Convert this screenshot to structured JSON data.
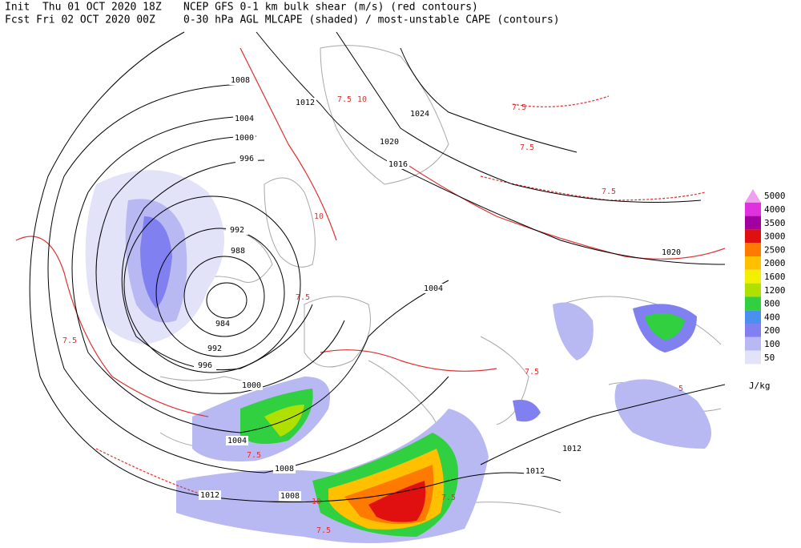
{
  "header": {
    "init": "Init  Thu 01 OCT 2020 18Z",
    "fcst": "Fcst Fri 02 OCT 2020 00Z",
    "title1": "NCEP GFS 0-1 km bulk shear (m/s) (red contours)",
    "title2": "0-30 hPa AGL MLCAPE (shaded) / most-unstable CAPE (contours)"
  },
  "legend": {
    "unit": "J/kg",
    "levels": [
      {
        "label": "5000",
        "color": "#f0a0f0"
      },
      {
        "label": "4000",
        "color": "#e030e0"
      },
      {
        "label": "3500",
        "color": "#a000a0"
      },
      {
        "label": "3000",
        "color": "#e01010"
      },
      {
        "label": "2500",
        "color": "#ff7a00"
      },
      {
        "label": "2000",
        "color": "#ffc000"
      },
      {
        "label": "1600",
        "color": "#f0f000"
      },
      {
        "label": "1200",
        "color": "#b0e000"
      },
      {
        "label": "800",
        "color": "#30d040"
      },
      {
        "label": "400",
        "color": "#4a90f0"
      },
      {
        "label": "200",
        "color": "#8080f0"
      },
      {
        "label": "100",
        "color": "#b8b8f2"
      },
      {
        "label": "50",
        "color": "#e2e2f8"
      }
    ]
  },
  "isobar_labels": [
    "1008",
    "1004",
    "1000",
    "996",
    "992",
    "988",
    "984",
    "992",
    "996",
    "1000",
    "1004",
    "1008",
    "1012",
    "1008",
    "1012",
    "1024",
    "1020",
    "1016",
    "1004",
    "1020",
    "1012",
    "1012"
  ],
  "shear_labels": [
    "7.5",
    "10",
    "7.5",
    "7.5",
    "7.5",
    "10",
    "7.5",
    "7.5",
    "7.5",
    "7.5",
    "10",
    "7.5",
    "5",
    "7.5"
  ]
}
